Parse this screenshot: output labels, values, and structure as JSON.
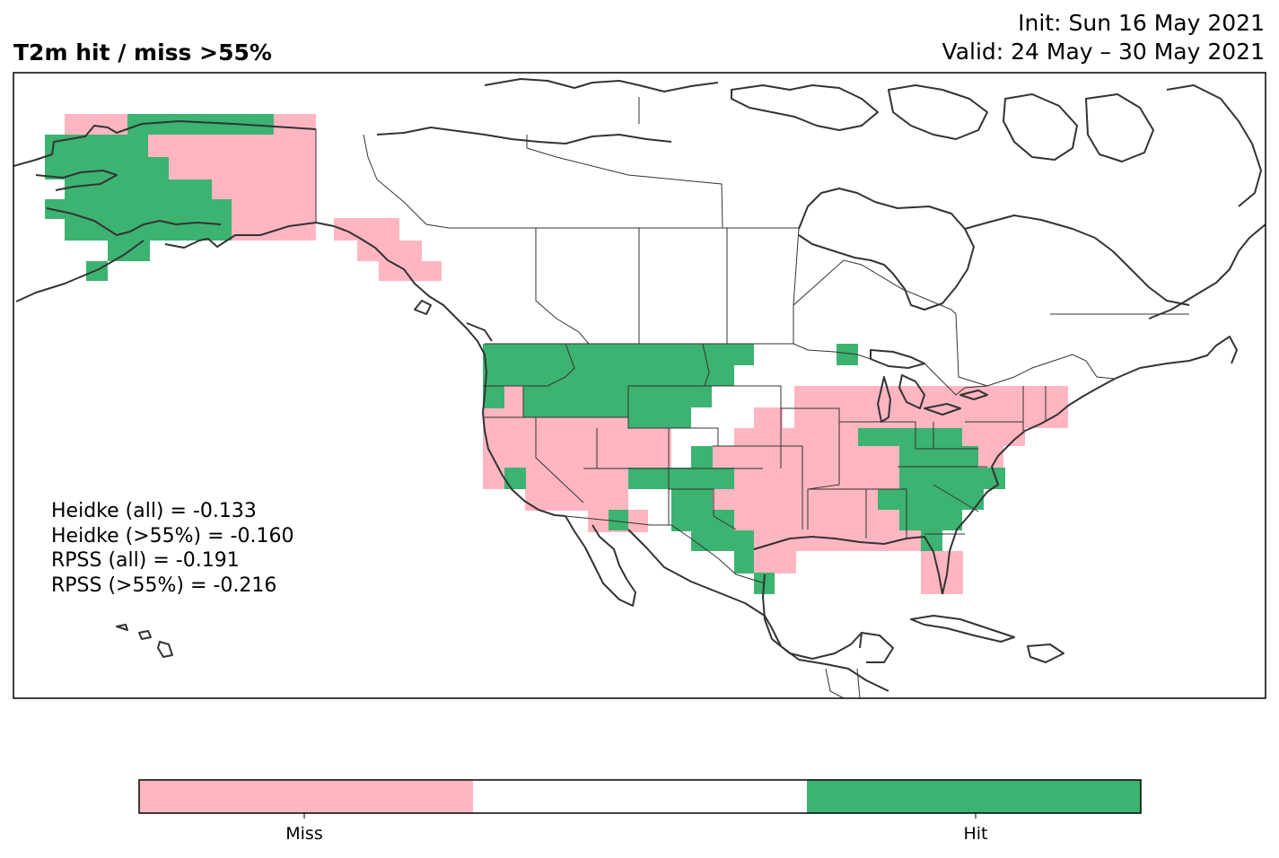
{
  "title": "T2m hit / miss  >55%",
  "init_line": "Init: Sun 16 May 2021",
  "valid_line": "Valid: 24 May – 30 May 2021",
  "stats": [
    "Heidke (all) = -0.133",
    "Heidke (>55%) = -0.160",
    "RPSS (all) = -0.191",
    "RPSS (>55%) = -0.216"
  ],
  "colors": {
    "miss": "#ffb6c1",
    "neutral": "#ffffff",
    "hit": "#3cb371",
    "coast": "#333333",
    "border": "#000000"
  },
  "colorbar": {
    "labels": [
      "Miss",
      "Hit"
    ],
    "bins": [
      "miss",
      "neutral",
      "hit"
    ]
  }
}
